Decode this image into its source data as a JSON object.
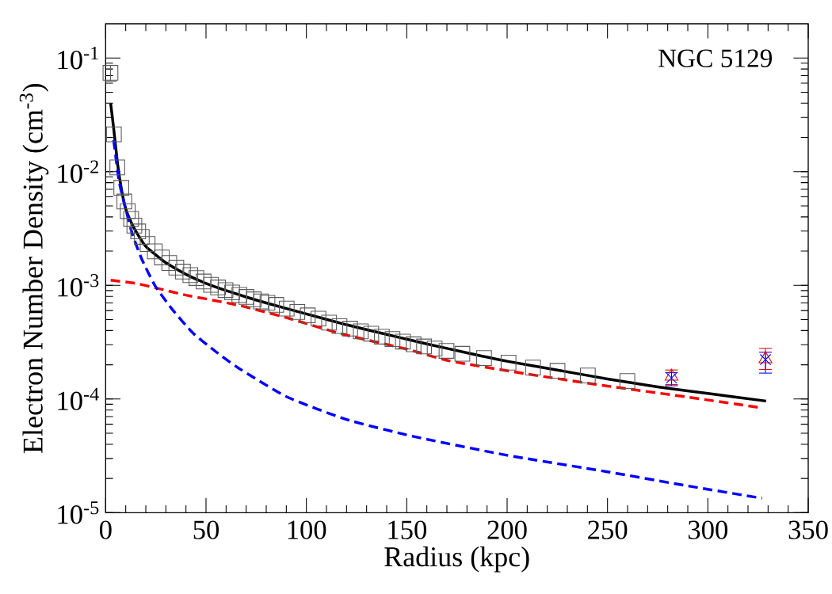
{
  "chart_data": {
    "type": "scatter",
    "xlabel": "Radius (kpc)",
    "ylabel": "Electron Number Density (cm$^{-3}$)",
    "annotations": [
      "NGC 5129"
    ],
    "log": "y",
    "xlim": [
      0,
      350
    ],
    "xticks": [
      0,
      50,
      100,
      150,
      200,
      250,
      300,
      350
    ],
    "ylim": [
      1e-05,
      0.2
    ],
    "yticks": [
      {
        "value": 1e-05,
        "label": "10$^{-5}$"
      },
      {
        "value": 0.0001,
        "label": "10$^{-4}$"
      },
      {
        "value": 0.001,
        "label": "10$^{-3}$"
      },
      {
        "value": 0.01,
        "label": "10$^{-2}$"
      },
      {
        "value": 0.1,
        "label": "10$^{-1}$"
      }
    ],
    "series": [
      {
        "marker": "square",
        "color": "#5a5a5a",
        "x": [
          2.4,
          4.1,
          5.8,
          7.8,
          9.3,
          11.0,
          12.7,
          14.3,
          16.2,
          18.0,
          20.9,
          24.5,
          28.0,
          31.7,
          35.2,
          38.5,
          42.2,
          45.2,
          48.8,
          52.5,
          56.0,
          59.7,
          63.0,
          66.6,
          70.1,
          73.8,
          77.4,
          80.6,
          85.0,
          90.2,
          95.5,
          100.7,
          106.0,
          111.3,
          116.5,
          121.8,
          127.1,
          132.3,
          137.6,
          142.9,
          148.1,
          153.4,
          158.6,
          163.9,
          169.8,
          177.7,
          188.5,
          200.7,
          212.9,
          225.1,
          240.2,
          259.9
        ],
        "values": [
          0.074,
          0.0213,
          0.0109,
          0.0072,
          0.00546,
          0.0045,
          0.00385,
          0.00335,
          0.00298,
          0.00267,
          0.00231,
          0.00199,
          0.00176,
          0.00157,
          0.00143,
          0.00132,
          0.00123,
          0.00116,
          0.00108,
          0.00101,
          0.000958,
          0.000908,
          0.000866,
          0.000824,
          0.00079,
          0.000753,
          0.000722,
          0.000703,
          0.000673,
          0.000625,
          0.000583,
          0.000544,
          0.00051,
          0.00047,
          0.000438,
          0.000416,
          0.000394,
          0.000376,
          0.000354,
          0.000337,
          0.00032,
          0.000303,
          0.00029,
          0.000278,
          0.000265,
          0.00025,
          0.000229,
          0.000209,
          0.000189,
          0.000177,
          0.000161,
          0.000144
        ],
        "errors": [
          [
            0.0625,
            0.0865
          ],
          null,
          null,
          null,
          null,
          null,
          null,
          null,
          null,
          null,
          null,
          null,
          null,
          null,
          null,
          null,
          null,
          null,
          null,
          null,
          null,
          null,
          null,
          null,
          null,
          null,
          null,
          null,
          null,
          null,
          null,
          null,
          null,
          null,
          null,
          null,
          null,
          null,
          null,
          null,
          null,
          null,
          null,
          null,
          null,
          null,
          null,
          null,
          null,
          null,
          null,
          null
        ]
      },
      {
        "marker": "triangle",
        "color": "#ff0000",
        "x": [
          281.9,
          328.7
        ],
        "values": [
          0.000158,
          0.000225
        ],
        "errors": [
          [
            0.000134,
            0.00018
          ],
          [
            0.000182,
            0.000279
          ]
        ]
      },
      {
        "marker": "cross",
        "color": "#0000ff",
        "x": [
          281.9,
          328.7
        ],
        "values": [
          0.000153,
          0.000222
        ],
        "errors": [
          [
            0.000131,
            0.000171
          ],
          [
            0.000169,
            0.000258
          ]
        ]
      },
      {
        "type": "line",
        "line_style": "solid",
        "color": "#000000",
        "x": [
          2.5,
          4,
          6,
          8,
          10,
          13,
          16,
          20,
          25,
          30,
          40,
          50,
          60,
          70,
          80,
          100,
          120,
          140,
          160,
          180,
          200,
          225,
          250,
          275,
          300,
          329
        ],
        "values": [
          0.0399,
          0.024,
          0.0115,
          0.0068,
          0.0047,
          0.0035,
          0.0028,
          0.0022,
          0.00185,
          0.00158,
          0.00125,
          0.00104,
          0.0009,
          0.00079,
          0.0007,
          0.00056,
          0.00045,
          0.00037,
          0.000305,
          0.000255,
          0.000215,
          0.00018,
          0.00015,
          0.000128,
          0.000112,
          9.6e-05
        ]
      },
      {
        "type": "line",
        "line_style": "dashed",
        "color": "#ff0000",
        "x": [
          2.5,
          15,
          26,
          40,
          66,
          90,
          118.5,
          150,
          171,
          210,
          250,
          290,
          326
        ],
        "values": [
          0.00111,
          0.00104,
          0.00094,
          0.00082,
          0.00067,
          0.00052,
          0.00037,
          0.000275,
          0.000217,
          0.000166,
          0.00013,
          0.000104,
          8.4e-05
        ]
      },
      {
        "type": "line",
        "line_style": "dashed",
        "color": "#0000ff",
        "x": [
          4,
          6.7,
          10,
          13.3,
          18,
          24.5,
          33,
          43.5,
          55,
          66,
          90,
          120,
          153,
          200,
          250,
          290,
          327
        ],
        "values": [
          0.019,
          0.0082,
          0.0047,
          0.00282,
          0.0017,
          0.001,
          0.00062,
          0.00038,
          0.00026,
          0.000188,
          0.000105,
          6.6e-05,
          4.7e-05,
          3.2e-05,
          2.29e-05,
          1.72e-05,
          1.34e-05
        ]
      }
    ]
  }
}
